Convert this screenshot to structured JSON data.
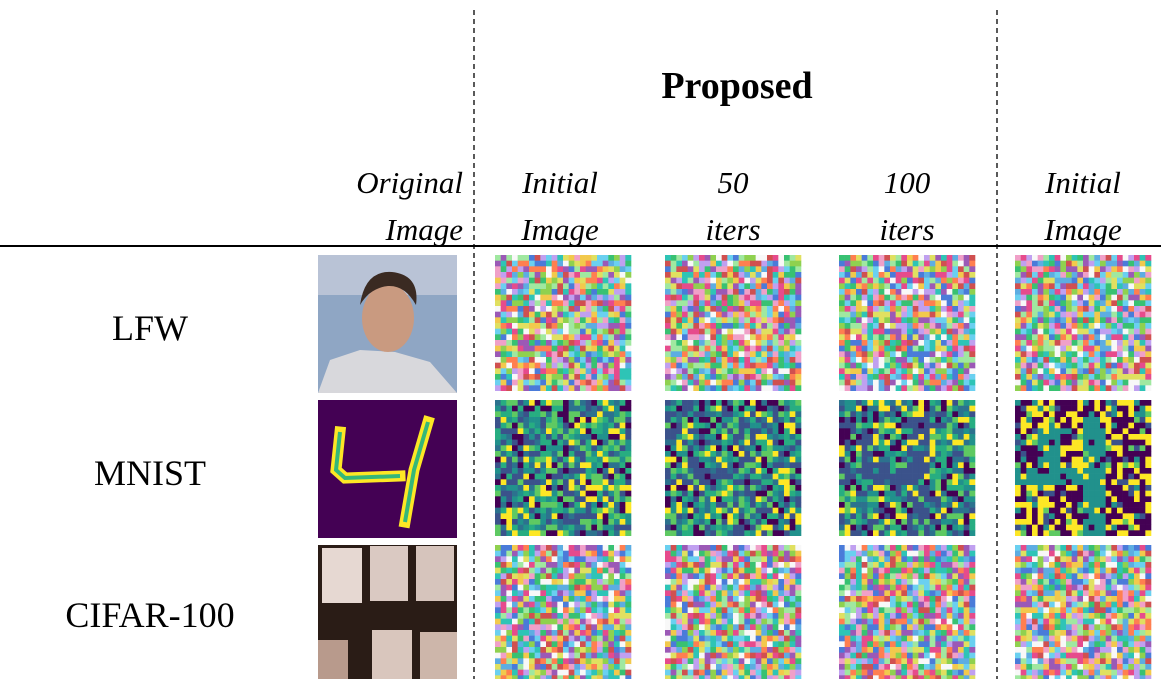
{
  "header": {
    "group_title": "Proposed"
  },
  "columns": [
    {
      "line1": "Original",
      "line2": "Image"
    },
    {
      "line1": "Initial",
      "line2": "Image"
    },
    {
      "line1": "50",
      "line2": "iters"
    },
    {
      "line1": "100",
      "line2": "iters"
    },
    {
      "line1": "Initial",
      "line2": "Image"
    }
  ],
  "rows": [
    "LFW",
    "MNIST",
    "CIFAR-100"
  ]
}
